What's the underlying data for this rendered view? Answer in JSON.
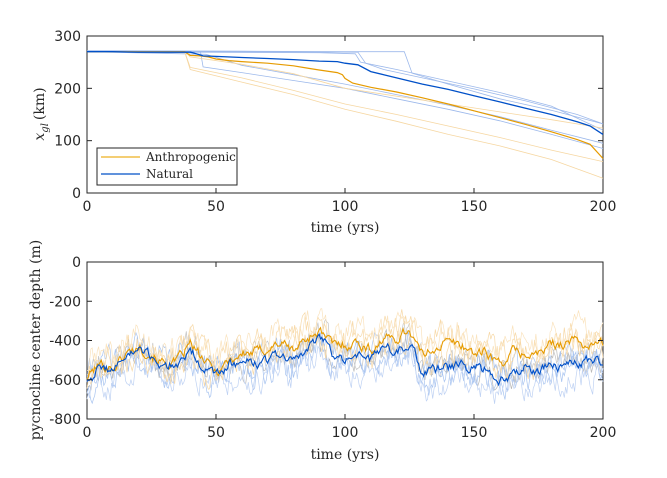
{
  "chart_data": [
    {
      "type": "line",
      "xlabel": "time (yrs)",
      "ylabel_main": "x",
      "ylabel_sub": "gl",
      "ylabel_unit": "(km)",
      "xlim": [
        0,
        200
      ],
      "ylim": [
        0,
        300
      ],
      "xticks": [
        "0",
        "50",
        "100",
        "150",
        "200"
      ],
      "yticks": [
        "0",
        "100",
        "200",
        "300"
      ],
      "legend_position": "bottom-left",
      "legend": [
        {
          "label": "Anthropogenic",
          "color": "#EDB120"
        },
        {
          "label": "Natural",
          "color": "#0050C8"
        }
      ],
      "series": [
        {
          "name": "Anthropogenic",
          "color": "#E69B00",
          "points": [
            [
              0,
              270
            ],
            [
              38,
              270
            ],
            [
              40,
              262
            ],
            [
              45,
              261
            ],
            [
              55,
              256
            ],
            [
              65,
              253
            ],
            [
              78,
              248
            ],
            [
              90,
              242
            ],
            [
              98,
              237
            ],
            [
              100,
              228
            ],
            [
              102,
              224
            ],
            [
              110,
              216
            ],
            [
              120,
              207
            ],
            [
              130,
              196
            ],
            [
              140,
              185
            ],
            [
              150,
              173
            ],
            [
              160,
              161
            ],
            [
              170,
              148
            ],
            [
              180,
              132
            ],
            [
              190,
              118
            ],
            [
              200,
              108
            ],
            [
              200,
              66
            ]
          ],
          "main": [
            [
              0,
              270
            ],
            [
              38,
              270
            ],
            [
              40,
              263
            ],
            [
              44,
              262
            ],
            [
              47,
              260
            ],
            [
              50,
              256
            ],
            [
              55,
              253
            ],
            [
              60,
              251
            ],
            [
              70,
              248
            ],
            [
              80,
              243
            ],
            [
              86,
              238
            ],
            [
              90,
              235
            ],
            [
              97,
              230
            ],
            [
              99,
              226
            ],
            [
              100,
              219
            ],
            [
              103,
              210
            ],
            [
              110,
              202
            ],
            [
              120,
              193
            ],
            [
              130,
              182
            ],
            [
              140,
              170
            ],
            [
              150,
              157
            ],
            [
              160,
              144
            ],
            [
              170,
              131
            ],
            [
              180,
              117
            ],
            [
              190,
              102
            ],
            [
              195,
              93
            ],
            [
              200,
              66
            ]
          ]
        },
        {
          "name": "Natural",
          "color": "#0050C8",
          "main": [
            [
              0,
              270
            ],
            [
              10,
              270
            ],
            [
              20,
              269
            ],
            [
              30,
              269
            ],
            [
              40,
              269
            ],
            [
              41,
              268
            ],
            [
              45,
              262
            ],
            [
              50,
              261
            ],
            [
              60,
              259
            ],
            [
              70,
              257
            ],
            [
              80,
              255
            ],
            [
              90,
              252
            ],
            [
              97,
              251
            ],
            [
              100,
              248
            ],
            [
              105,
              245
            ],
            [
              110,
              232
            ],
            [
              115,
              226
            ],
            [
              120,
              220
            ],
            [
              125,
              214
            ],
            [
              130,
              208
            ],
            [
              140,
              198
            ],
            [
              150,
              186
            ],
            [
              160,
              174
            ],
            [
              170,
              162
            ],
            [
              180,
              150
            ],
            [
              190,
              136
            ],
            [
              195,
              128
            ],
            [
              200,
              112
            ]
          ]
        }
      ],
      "natural_ensemble": [
        [
          [
            0,
            272
          ],
          [
            60,
            271
          ],
          [
            100,
            270
          ],
          [
            123,
            270
          ],
          [
            126,
            229
          ],
          [
            140,
            208
          ],
          [
            160,
            180
          ],
          [
            180,
            158
          ],
          [
            200,
            132
          ]
        ],
        [
          [
            0,
            271
          ],
          [
            70,
            270
          ],
          [
            105,
            269
          ],
          [
            108,
            248
          ],
          [
            115,
            236
          ],
          [
            130,
            220
          ],
          [
            150,
            199
          ],
          [
            170,
            176
          ],
          [
            190,
            150
          ],
          [
            200,
            132
          ]
        ],
        [
          [
            0,
            270
          ],
          [
            90,
            268
          ],
          [
            104,
            266
          ],
          [
            106,
            250
          ],
          [
            120,
            236
          ],
          [
            140,
            214
          ],
          [
            160,
            192
          ],
          [
            180,
            166
          ],
          [
            200,
            120
          ]
        ],
        [
          [
            0,
            270
          ],
          [
            44,
            269
          ],
          [
            45,
            241
          ],
          [
            60,
            230
          ],
          [
            80,
            215
          ],
          [
            100,
            200
          ],
          [
            120,
            180
          ],
          [
            140,
            160
          ],
          [
            160,
            138
          ],
          [
            180,
            112
          ],
          [
            200,
            85
          ]
        ],
        [
          [
            0,
            270
          ],
          [
            46,
            265
          ],
          [
            60,
            244
          ],
          [
            80,
            226
          ],
          [
            100,
            208
          ],
          [
            120,
            188
          ],
          [
            140,
            168
          ],
          [
            160,
            146
          ],
          [
            180,
            120
          ],
          [
            200,
            95
          ]
        ]
      ],
      "anthro_ensemble": [
        [
          [
            0,
            270
          ],
          [
            38,
            270
          ],
          [
            40,
            260
          ],
          [
            60,
            246
          ],
          [
            80,
            228
          ],
          [
            100,
            200
          ],
          [
            120,
            185
          ],
          [
            140,
            170
          ],
          [
            160,
            155
          ],
          [
            180,
            140
          ],
          [
            200,
            124
          ]
        ],
        [
          [
            0,
            270
          ],
          [
            38,
            268
          ],
          [
            40,
            240
          ],
          [
            60,
            220
          ],
          [
            80,
            196
          ],
          [
            100,
            170
          ],
          [
            120,
            150
          ],
          [
            140,
            128
          ],
          [
            160,
            106
          ],
          [
            180,
            82
          ],
          [
            200,
            60
          ]
        ],
        [
          [
            0,
            270
          ],
          [
            38,
            268
          ],
          [
            40,
            236
          ],
          [
            60,
            212
          ],
          [
            80,
            188
          ],
          [
            100,
            160
          ],
          [
            120,
            137
          ],
          [
            140,
            112
          ],
          [
            160,
            90
          ],
          [
            180,
            64
          ],
          [
            200,
            28
          ]
        ]
      ]
    },
    {
      "type": "line",
      "xlabel": "time (yrs)",
      "ylabel": "pycnocline center depth (m)",
      "xlim": [
        0,
        200
      ],
      "ylim": [
        -800,
        0
      ],
      "xticks": [
        "0",
        "50",
        "100",
        "150",
        "200"
      ],
      "yticks": [
        "-800",
        "-600",
        "-400",
        "-200",
        "0"
      ],
      "series": [
        {
          "name": "Anthropogenic",
          "color": "#E69B00",
          "x": [
            0,
            5,
            10,
            15,
            20,
            25,
            30,
            35,
            40,
            45,
            50,
            55,
            60,
            65,
            70,
            75,
            80,
            85,
            90,
            95,
            100,
            105,
            110,
            115,
            120,
            125,
            130,
            135,
            140,
            145,
            150,
            155,
            160,
            165,
            170,
            175,
            180,
            185,
            190,
            195,
            200
          ],
          "values": [
            -585,
            -520,
            -540,
            -470,
            -430,
            -470,
            -520,
            -510,
            -420,
            -500,
            -560,
            -500,
            -470,
            -460,
            -440,
            -410,
            -450,
            -390,
            -350,
            -420,
            -420,
            -410,
            -450,
            -390,
            -390,
            -340,
            -480,
            -430,
            -410,
            -420,
            -460,
            -460,
            -520,
            -460,
            -470,
            -470,
            -420,
            -410,
            -400,
            -430,
            -410
          ]
        },
        {
          "name": "Natural",
          "color": "#0050C8",
          "x": [
            0,
            5,
            10,
            15,
            20,
            25,
            30,
            35,
            40,
            45,
            50,
            55,
            60,
            65,
            70,
            75,
            80,
            85,
            90,
            95,
            100,
            105,
            110,
            115,
            120,
            125,
            130,
            135,
            140,
            145,
            150,
            155,
            160,
            165,
            170,
            175,
            180,
            185,
            190,
            195,
            200
          ],
          "values": [
            -600,
            -540,
            -550,
            -480,
            -450,
            -490,
            -530,
            -520,
            -450,
            -530,
            -590,
            -520,
            -510,
            -520,
            -500,
            -470,
            -510,
            -450,
            -370,
            -470,
            -480,
            -470,
            -500,
            -440,
            -450,
            -410,
            -560,
            -560,
            -540,
            -520,
            -550,
            -540,
            -600,
            -560,
            -540,
            -560,
            -510,
            -530,
            -520,
            -500,
            -510
          ]
        }
      ]
    }
  ]
}
